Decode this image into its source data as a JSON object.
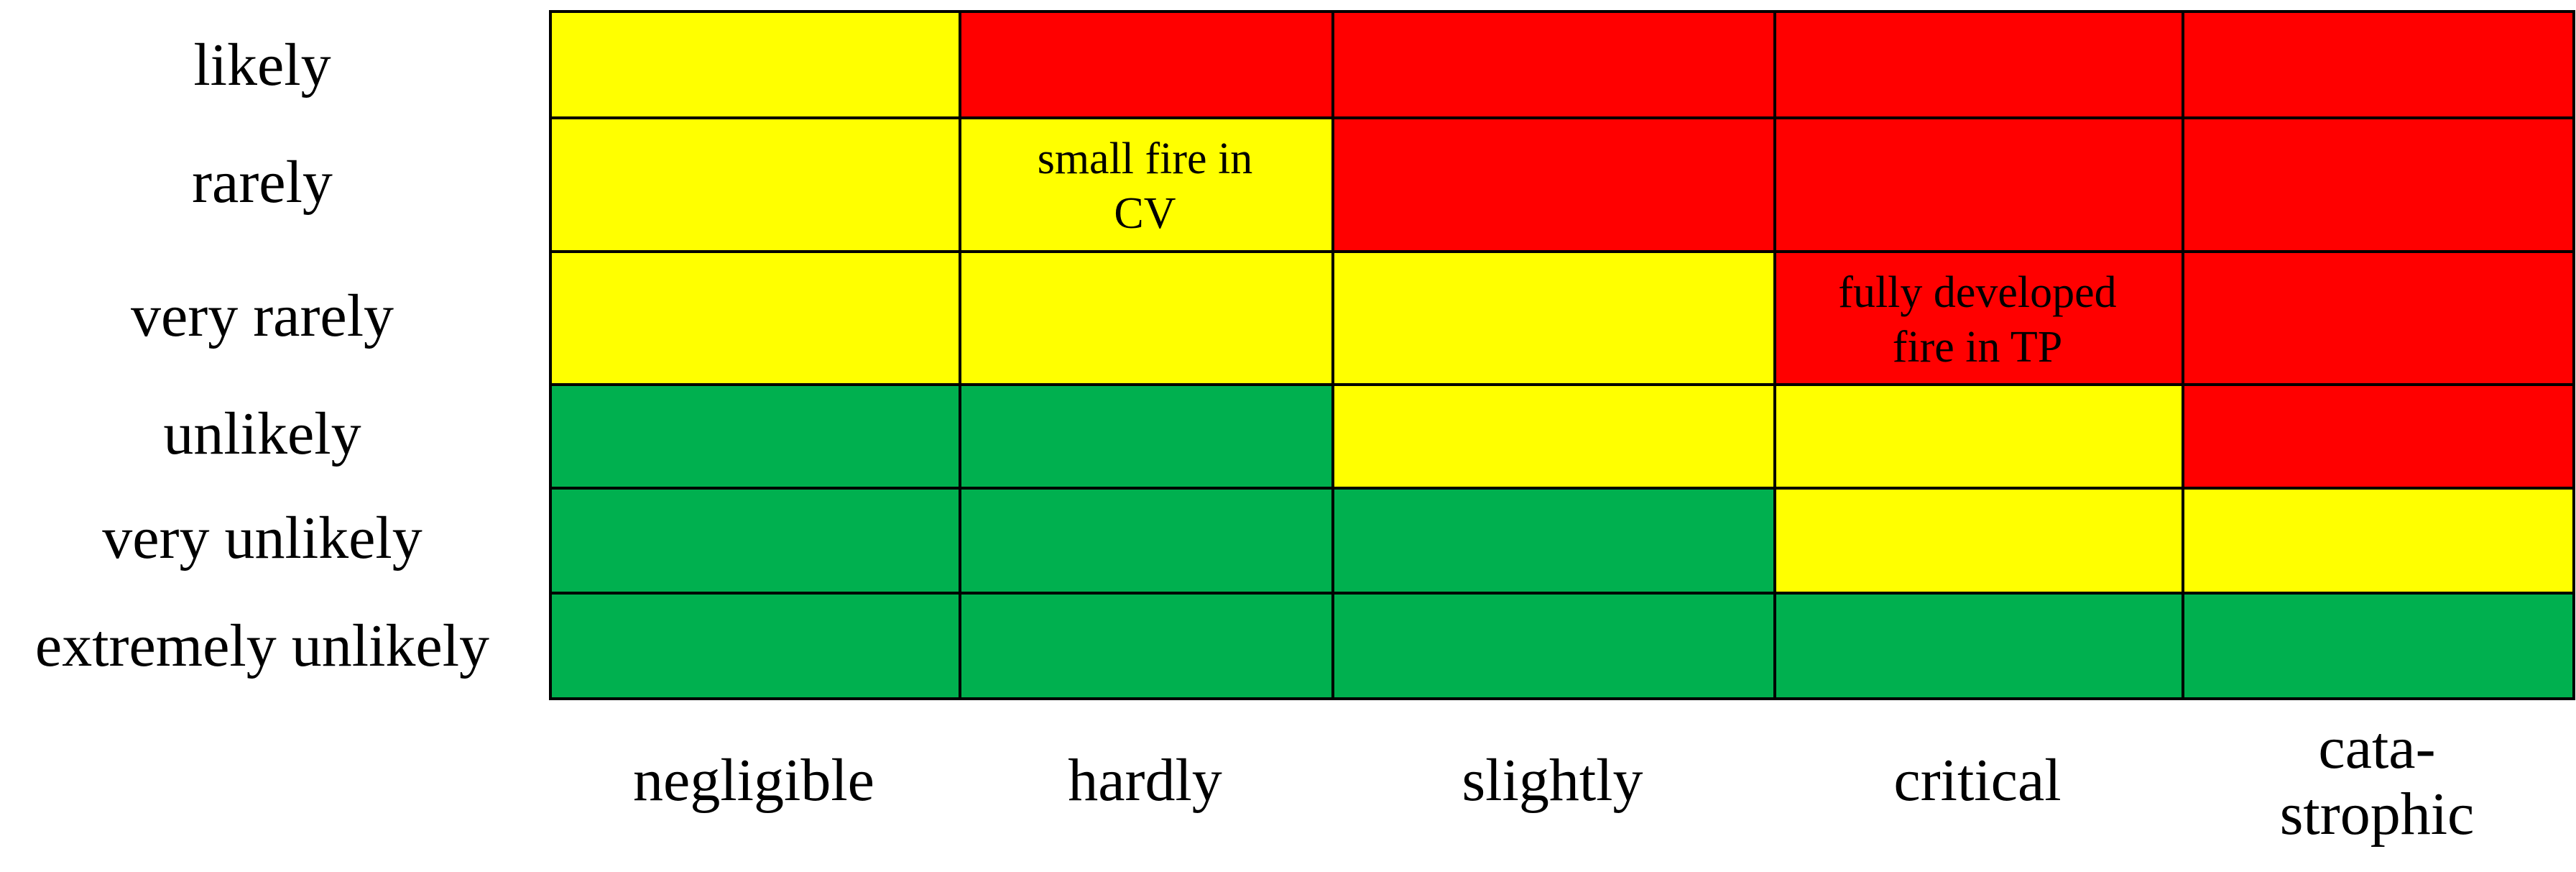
{
  "colors": {
    "green": "#00B04F",
    "yellow": "#FFFF00",
    "red": "#FF0000",
    "border": "#000000"
  },
  "rows": [
    {
      "label": "likely",
      "cells": [
        "yellow",
        "red",
        "red",
        "red",
        "red"
      ]
    },
    {
      "label": "rarely",
      "cells": [
        "yellow",
        "yellow",
        "red",
        "red",
        "red"
      ]
    },
    {
      "label": "very rarely",
      "cells": [
        "yellow",
        "yellow",
        "yellow",
        "red",
        "red"
      ]
    },
    {
      "label": "unlikely",
      "cells": [
        "green",
        "green",
        "yellow",
        "yellow",
        "red"
      ]
    },
    {
      "label": "very unlikely",
      "cells": [
        "green",
        "green",
        "green",
        "yellow",
        "yellow"
      ]
    },
    {
      "label": "extremely unlikely",
      "cells": [
        "green",
        "green",
        "green",
        "green",
        "green"
      ]
    }
  ],
  "columns": [
    {
      "label": "negligible"
    },
    {
      "label": "hardly"
    },
    {
      "label": "slightly"
    },
    {
      "label": "critical"
    },
    {
      "label": "cata-\nstrophic"
    }
  ],
  "annotations": [
    {
      "row": 1,
      "col": 1,
      "text": "small fire in\nCV"
    },
    {
      "row": 2,
      "col": 3,
      "text": "fully developed\nfire in TP"
    }
  ]
}
